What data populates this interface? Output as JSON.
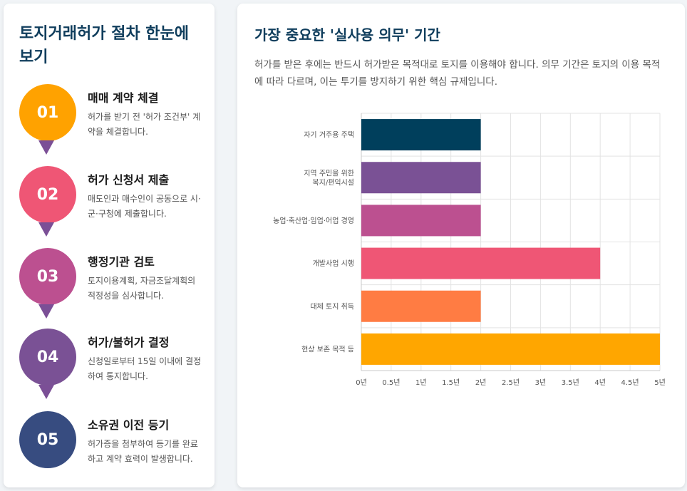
{
  "left_panel": {
    "title": "토지거래허가 절차 한눈에 보기",
    "steps": [
      {
        "number": "01",
        "title": "매매 계약 체결",
        "description": "허가를 받기 전 '허가 조건부' 계약을 체결합니다.",
        "color": "#ffa200"
      },
      {
        "number": "02",
        "title": "허가 신청서 제출",
        "description": "매도인과 매수인이 공동으로 시·군·구청에 제출합니다.",
        "color": "#ef5675"
      },
      {
        "number": "03",
        "title": "행정기관 검토",
        "description": "토지이용계획, 자금조달계획의 적정성을 심사합니다.",
        "color": "#bc5090"
      },
      {
        "number": "04",
        "title": "허가/불허가 결정",
        "description": "신청일로부터 15일 이내에 결정하여 통지합니다.",
        "color": "#7a5195"
      },
      {
        "number": "05",
        "title": "소유권 이전 등기",
        "description": "허가증을 첨부하여 등기를 완료하고 계약 효력이 발생합니다.",
        "color": "#374c80"
      }
    ],
    "pointer_color": "#7a5195"
  },
  "right_panel": {
    "title": "가장 중요한 '실사용 의무' 기간",
    "description": "허가를 받은 후에는 반드시 허가받은 목적대로 토지를 이용해야 합니다. 의무 기간은 토지의 이용 목적에 따라 다르며, 이는 투기를 방지하기 위한 핵심 규제입니다."
  },
  "chart_data": {
    "type": "bar",
    "orientation": "horizontal",
    "categories": [
      [
        "자기 거주용 주택"
      ],
      [
        "지역 주민을 위한",
        "복지/편익시설"
      ],
      [
        "농업·축산업·임업·어업 경영"
      ],
      [
        "개발사업 시행"
      ],
      [
        "대체 토지 취득"
      ],
      [
        "현상 보존 목적 등"
      ]
    ],
    "values": [
      2,
      2,
      2,
      4,
      2,
      5
    ],
    "colors": [
      "#003f5c",
      "#7a5195",
      "#bc5090",
      "#ef5675",
      "#ff7c43",
      "#ffa600"
    ],
    "xlim": [
      0,
      5
    ],
    "x_ticks": [
      0,
      0.5,
      1,
      1.5,
      2,
      2.5,
      3,
      3.5,
      4,
      4.5,
      5
    ],
    "x_tick_labels": [
      "0년",
      "0.5년",
      "1년",
      "1.5년",
      "2년",
      "2.5년",
      "3년",
      "3.5년",
      "4년",
      "4.5년",
      "5년"
    ],
    "grid": true,
    "legend": "none"
  }
}
